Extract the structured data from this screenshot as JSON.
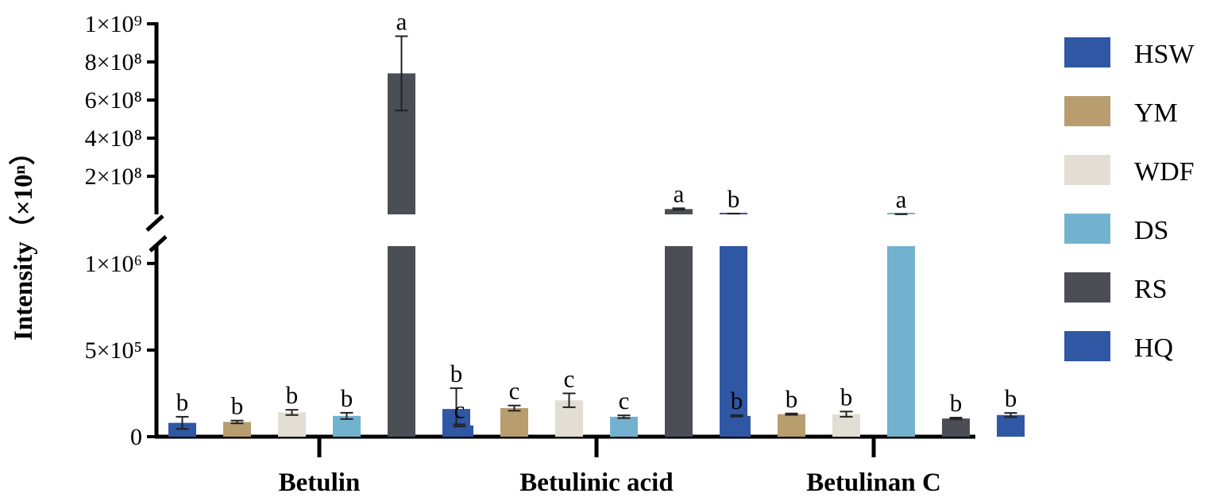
{
  "chart_data": {
    "type": "bar",
    "ylabel": "Intensity（×10ⁿ）",
    "categories": [
      "Betulin",
      "Betulinic acid",
      "Betulinan C"
    ],
    "y_axis_broken": true,
    "lower_segment": {
      "ylim": [
        0,
        1100000
      ],
      "ticks": [
        {
          "value": 0,
          "label": "0"
        },
        {
          "value": 500000,
          "label": "5×10⁵"
        },
        {
          "value": 1000000,
          "label": "1×10⁶"
        }
      ]
    },
    "upper_segment": {
      "ylim": [
        0,
        1000000000
      ],
      "ticks": [
        {
          "value": 200000000,
          "label": "2×10⁸"
        },
        {
          "value": 400000000,
          "label": "4×10⁸"
        },
        {
          "value": 600000000,
          "label": "6×10⁸"
        },
        {
          "value": 800000000,
          "label": "8×10⁸"
        },
        {
          "value": 1000000000,
          "label": "1×10⁹"
        }
      ]
    },
    "series": [
      {
        "name": "HSW",
        "color": "#2f57a3",
        "values": [
          80000,
          65000,
          120000
        ],
        "errors": [
          35000,
          6000,
          4000
        ],
        "letters": [
          "b",
          "c",
          "b"
        ]
      },
      {
        "name": "YM",
        "color": "#b89d6f",
        "values": [
          85000,
          165000,
          130000
        ],
        "errors": [
          8000,
          15000,
          4000
        ],
        "letters": [
          "b",
          "c",
          "b"
        ]
      },
      {
        "name": "WDF",
        "color": "#e2ded4",
        "values": [
          140000,
          210000,
          130000
        ],
        "errors": [
          15000,
          40000,
          15000
        ],
        "letters": [
          "b",
          "c",
          "b"
        ]
      },
      {
        "name": "DS",
        "color": "#72b2cf",
        "values": [
          120000,
          115000,
          1120000
        ],
        "errors": [
          18000,
          8000,
          120000
        ],
        "letters": [
          "b",
          "c",
          "a"
        ]
      },
      {
        "name": "RS",
        "color": "#4b4e54",
        "values": [
          740000000,
          28000000,
          105000
        ],
        "errors": [
          195000000,
          4000000,
          5000
        ],
        "letters": [
          "a",
          "a",
          "b"
        ]
      },
      {
        "name": "HQ",
        "color": "#2f57a3",
        "values": [
          160000,
          4000000,
          125000
        ],
        "errors": [
          120000,
          500000,
          12000
        ],
        "letters": [
          "b",
          "b",
          "b"
        ]
      }
    ],
    "legend_position": "right"
  }
}
